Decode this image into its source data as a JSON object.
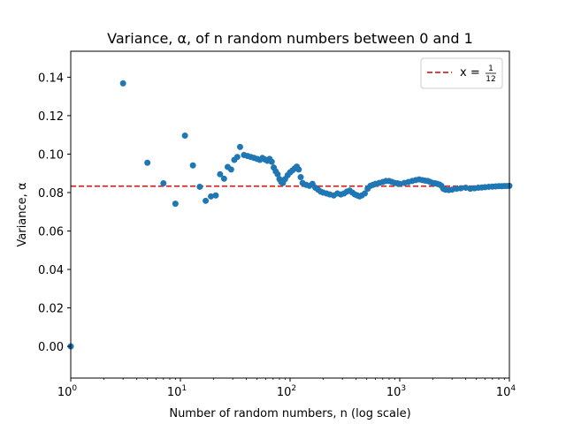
{
  "chart_data": {
    "type": "scatter",
    "title": "Variance, α, of n random numbers between 0 and 1",
    "xlabel": "Number of random numbers, n (log scale)",
    "ylabel": "Variance, α",
    "xscale": "log",
    "xlim": [
      1,
      10000
    ],
    "ylim": [
      -0.0165,
      0.1535
    ],
    "grid": false,
    "legend_position": "top-right",
    "colors": {
      "points": "#1f77b4",
      "reference_line": "#d62728"
    },
    "x_ticks": [
      {
        "value": 1,
        "base": "10",
        "exp": "0"
      },
      {
        "value": 10,
        "base": "10",
        "exp": "1"
      },
      {
        "value": 100,
        "base": "10",
        "exp": "2"
      },
      {
        "value": 1000,
        "base": "10",
        "exp": "3"
      },
      {
        "value": 10000,
        "base": "10",
        "exp": "4"
      }
    ],
    "y_ticks": [
      {
        "value": 0.0,
        "label": "0.00"
      },
      {
        "value": 0.02,
        "label": "0.02"
      },
      {
        "value": 0.04,
        "label": "0.04"
      },
      {
        "value": 0.06,
        "label": "0.06"
      },
      {
        "value": 0.08,
        "label": "0.08"
      },
      {
        "value": 0.1,
        "label": "0.10"
      },
      {
        "value": 0.12,
        "label": "0.12"
      },
      {
        "value": 0.14,
        "label": "0.14"
      }
    ],
    "reference_line": {
      "value": 0.08333,
      "legend_prefix": "x = ",
      "legend_numerator": "1",
      "legend_denominator": "12"
    },
    "series": [
      {
        "x": [
          1,
          3,
          5,
          7,
          9,
          11,
          13,
          15,
          17,
          19,
          21,
          23,
          25,
          27,
          29,
          31,
          33,
          35,
          38,
          41,
          44,
          47,
          50,
          53,
          56,
          59,
          62,
          65,
          68,
          71,
          74,
          77,
          80,
          83,
          86,
          90,
          95,
          100,
          105,
          110,
          115,
          120,
          125,
          130,
          140,
          150,
          160,
          170,
          180,
          190,
          200,
          215,
          230,
          250,
          270,
          290,
          310,
          330,
          350,
          370,
          390,
          410,
          430,
          450,
          480,
          510,
          540,
          570,
          600,
          650,
          700,
          750,
          800,
          850,
          900,
          950,
          1000,
          1100,
          1200,
          1300,
          1400,
          1500,
          1600,
          1700,
          1800,
          1900,
          2000,
          2100,
          2200,
          2300,
          2400,
          2500,
          2600,
          2800,
          3000,
          3300,
          3600,
          4000,
          4400,
          4800,
          5200,
          5600,
          6000,
          6500,
          7000,
          7500,
          8000,
          8500,
          9000,
          9500,
          10000
        ],
        "y": [
          0.0,
          0.1368,
          0.0955,
          0.0848,
          0.0742,
          0.1096,
          0.0941,
          0.083,
          0.0757,
          0.078,
          0.0785,
          0.0895,
          0.0872,
          0.0933,
          0.092,
          0.097,
          0.0985,
          0.1037,
          0.0995,
          0.099,
          0.0985,
          0.098,
          0.0975,
          0.097,
          0.098,
          0.0972,
          0.0965,
          0.0975,
          0.096,
          0.093,
          0.091,
          0.0895,
          0.087,
          0.0855,
          0.085,
          0.087,
          0.089,
          0.0905,
          0.0915,
          0.0925,
          0.0935,
          0.092,
          0.088,
          0.085,
          0.084,
          0.0835,
          0.0845,
          0.0825,
          0.0815,
          0.0805,
          0.08,
          0.0795,
          0.079,
          0.0785,
          0.0795,
          0.079,
          0.0795,
          0.0805,
          0.081,
          0.08,
          0.079,
          0.0785,
          0.078,
          0.0785,
          0.0795,
          0.082,
          0.0835,
          0.084,
          0.0845,
          0.085,
          0.0855,
          0.086,
          0.086,
          0.0855,
          0.085,
          0.0848,
          0.0845,
          0.085,
          0.0855,
          0.086,
          0.0865,
          0.0868,
          0.0865,
          0.0862,
          0.086,
          0.0855,
          0.085,
          0.0848,
          0.0845,
          0.0842,
          0.0835,
          0.082,
          0.0815,
          0.0813,
          0.0815,
          0.082,
          0.0822,
          0.0825,
          0.082,
          0.0822,
          0.0825,
          0.0826,
          0.0828,
          0.083,
          0.0831,
          0.0832,
          0.0833,
          0.0833,
          0.0834,
          0.0834,
          0.0835
        ]
      }
    ]
  }
}
